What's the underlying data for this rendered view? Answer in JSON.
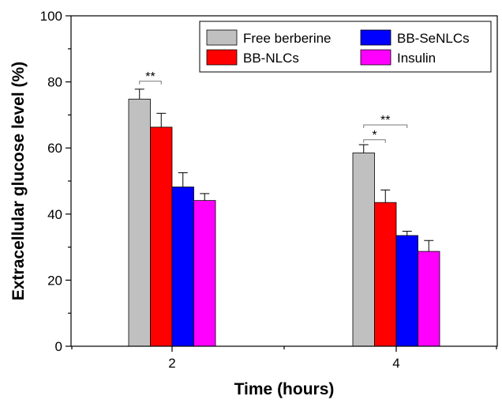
{
  "chart_data": {
    "type": "bar",
    "title": "",
    "xlabel": "Time (hours)",
    "ylabel": "Extracellular glucose level (%)",
    "ylim": [
      0,
      100
    ],
    "yticks": [
      0,
      20,
      40,
      60,
      80,
      100
    ],
    "categories": [
      "2",
      "4"
    ],
    "grid": false,
    "legend_position": "top-right",
    "series": [
      {
        "name": "Free berberine",
        "color": "#c0c0c0",
        "values": [
          74.8,
          58.5
        ],
        "errors": [
          3.0,
          2.5
        ]
      },
      {
        "name": "BB-NLCs",
        "color": "#ff0000",
        "values": [
          66.3,
          43.5
        ],
        "errors": [
          4.2,
          3.8
        ]
      },
      {
        "name": "BB-SeNLCs",
        "color": "#0000ff",
        "values": [
          48.2,
          33.5
        ],
        "errors": [
          4.3,
          1.3
        ]
      },
      {
        "name": "Insulin",
        "color": "#ff00ff",
        "values": [
          44.1,
          28.7
        ],
        "errors": [
          2.1,
          3.3
        ]
      }
    ],
    "legend_order": [
      0,
      2,
      1,
      3
    ],
    "annotations": [
      {
        "text": "**",
        "category": 0,
        "from_series": 0,
        "to_series": 1,
        "y": 80.2
      },
      {
        "text": "*",
        "category": 1,
        "from_series": 0,
        "to_series": 1,
        "y": 62.5
      },
      {
        "text": "**",
        "category": 1,
        "from_series": 0,
        "to_series": 2,
        "y": 67.0
      }
    ]
  }
}
